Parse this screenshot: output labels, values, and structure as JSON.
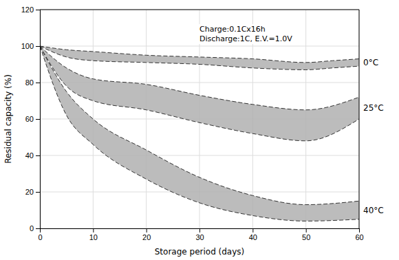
{
  "chart_data": {
    "type": "band",
    "xlabel": "Storage period (days)",
    "ylabel": "Residual capacity (%)",
    "annotation": "Charge:0.1Cx16h\nDischarge:1C, E.V.=1.0V",
    "xlim": [
      0,
      60
    ],
    "ylim": [
      0,
      120
    ],
    "xticks": [
      0,
      10,
      20,
      30,
      40,
      50,
      60
    ],
    "yticks": [
      0,
      20,
      40,
      60,
      80,
      100,
      120
    ],
    "grid": true,
    "line_style": "dashed",
    "series": [
      {
        "name": "0°C",
        "color": "#b0b0b0",
        "x": [
          0,
          5,
          10,
          20,
          30,
          40,
          50,
          55,
          60
        ],
        "upper": [
          100,
          98,
          97,
          95,
          94,
          93,
          91,
          92,
          93
        ],
        "lower": [
          100,
          94,
          92,
          91,
          90,
          88,
          87,
          88,
          89
        ]
      },
      {
        "name": "25°C",
        "color": "#b0b0b0",
        "x": [
          0,
          5,
          10,
          20,
          30,
          40,
          50,
          60
        ],
        "upper": [
          100,
          88,
          82,
          79,
          73,
          68,
          65,
          72
        ],
        "lower": [
          100,
          78,
          70,
          65,
          58,
          52,
          48,
          60
        ]
      },
      {
        "name": "40°C",
        "color": "#b0b0b0",
        "x": [
          0,
          5,
          10,
          20,
          30,
          40,
          50,
          60
        ],
        "upper": [
          100,
          75,
          60,
          43,
          28,
          18,
          13,
          15
        ],
        "lower": [
          100,
          62,
          46,
          27,
          14,
          7,
          4,
          5
        ]
      }
    ]
  }
}
